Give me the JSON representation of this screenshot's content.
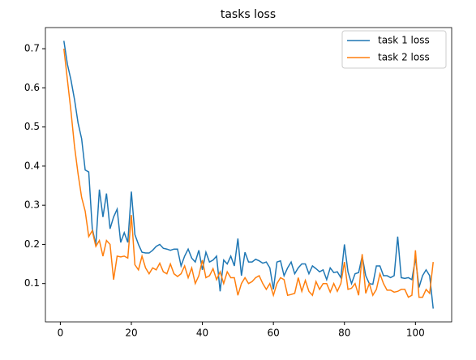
{
  "chart_data": {
    "type": "line",
    "title": "tasks loss",
    "x": [
      1,
      2,
      3,
      4,
      5,
      6,
      7,
      8,
      9,
      10,
      11,
      12,
      13,
      14,
      15,
      16,
      17,
      18,
      19,
      20,
      21,
      22,
      23,
      24,
      25,
      26,
      27,
      28,
      29,
      30,
      31,
      32,
      33,
      34,
      35,
      36,
      37,
      38,
      39,
      40,
      41,
      42,
      43,
      44,
      45,
      46,
      47,
      48,
      49,
      50,
      51,
      52,
      53,
      54,
      55,
      56,
      57,
      58,
      59,
      60,
      61,
      62,
      63,
      64,
      65,
      66,
      67,
      68,
      69,
      70,
      71,
      72,
      73,
      74,
      75,
      76,
      77,
      78,
      79,
      80,
      81,
      82,
      83,
      84,
      85,
      86,
      87,
      88,
      89,
      90,
      91,
      92,
      93,
      94,
      95,
      96,
      97,
      98,
      99,
      100,
      101,
      102,
      103,
      104,
      105
    ],
    "series": [
      {
        "name": "task 1 loss",
        "color": "#1f77b4",
        "values": [
          0.72,
          0.66,
          0.62,
          0.57,
          0.51,
          0.47,
          0.39,
          0.385,
          0.24,
          0.2,
          0.34,
          0.27,
          0.33,
          0.24,
          0.27,
          0.29,
          0.205,
          0.23,
          0.205,
          0.335,
          0.225,
          0.2,
          0.18,
          0.178,
          0.178,
          0.185,
          0.195,
          0.2,
          0.19,
          0.188,
          0.185,
          0.188,
          0.188,
          0.145,
          0.17,
          0.188,
          0.165,
          0.155,
          0.185,
          0.135,
          0.18,
          0.155,
          0.16,
          0.17,
          0.08,
          0.16,
          0.15,
          0.17,
          0.145,
          0.215,
          0.12,
          0.18,
          0.155,
          0.155,
          0.162,
          0.158,
          0.152,
          0.155,
          0.14,
          0.085,
          0.155,
          0.158,
          0.12,
          0.14,
          0.155,
          0.125,
          0.14,
          0.15,
          0.15,
          0.125,
          0.145,
          0.138,
          0.13,
          0.135,
          0.11,
          0.14,
          0.128,
          0.13,
          0.115,
          0.2,
          0.13,
          0.1,
          0.125,
          0.128,
          0.17,
          0.12,
          0.1,
          0.098,
          0.145,
          0.145,
          0.12,
          0.12,
          0.115,
          0.12,
          0.22,
          0.115,
          0.113,
          0.115,
          0.11,
          0.165,
          0.09,
          0.12,
          0.135,
          0.12,
          0.036
        ]
      },
      {
        "name": "task 2 loss",
        "color": "#ff7f0e",
        "values": [
          0.7,
          0.62,
          0.54,
          0.45,
          0.38,
          0.32,
          0.285,
          0.22,
          0.235,
          0.195,
          0.21,
          0.17,
          0.21,
          0.2,
          0.11,
          0.17,
          0.168,
          0.17,
          0.165,
          0.275,
          0.148,
          0.135,
          0.17,
          0.14,
          0.125,
          0.14,
          0.135,
          0.152,
          0.13,
          0.125,
          0.15,
          0.125,
          0.118,
          0.125,
          0.145,
          0.115,
          0.14,
          0.1,
          0.12,
          0.16,
          0.115,
          0.12,
          0.138,
          0.11,
          0.13,
          0.1,
          0.13,
          0.115,
          0.115,
          0.07,
          0.1,
          0.115,
          0.1,
          0.105,
          0.115,
          0.12,
          0.1,
          0.085,
          0.1,
          0.07,
          0.1,
          0.115,
          0.11,
          0.07,
          0.072,
          0.075,
          0.115,
          0.08,
          0.108,
          0.08,
          0.07,
          0.105,
          0.085,
          0.1,
          0.1,
          0.078,
          0.1,
          0.08,
          0.1,
          0.155,
          0.085,
          0.088,
          0.1,
          0.07,
          0.175,
          0.075,
          0.1,
          0.07,
          0.085,
          0.125,
          0.1,
          0.083,
          0.083,
          0.078,
          0.08,
          0.085,
          0.085,
          0.065,
          0.07,
          0.185,
          0.065,
          0.065,
          0.085,
          0.075,
          0.155
        ]
      }
    ],
    "xlim": [
      -4.2,
      110.2
    ],
    "ylim": [
      0.002,
      0.754
    ],
    "xticks": [
      0,
      20,
      40,
      60,
      80,
      100
    ],
    "yticks": [
      0.1,
      0.2,
      0.3,
      0.4,
      0.5,
      0.6,
      0.7
    ],
    "legend": "upper right"
  }
}
